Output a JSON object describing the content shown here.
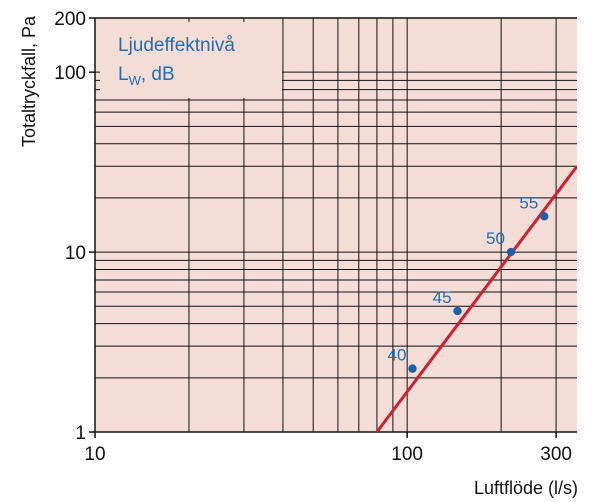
{
  "chart_data": {
    "type": "line",
    "xscale": "log",
    "yscale": "log",
    "xlim": [
      10,
      350
    ],
    "ylim": [
      1,
      200
    ],
    "xlabel": "Luftflöde (l/s)",
    "ylabel": "Totaltryckfall, Pa",
    "x_tick_labels": [
      "10",
      "100",
      "300"
    ],
    "x_ticks": [
      10,
      100,
      300
    ],
    "y_tick_labels": [
      "1",
      "10",
      "100",
      "200"
    ],
    "y_ticks": [
      1,
      10,
      100,
      200
    ],
    "grid": true,
    "legend": {
      "line1": "Ljudeffektnivå",
      "main": "L",
      "sub": "W",
      "suffix": ", dB"
    },
    "line": {
      "x": [
        80,
        350
      ],
      "y": [
        1,
        30
      ]
    },
    "points": [
      {
        "label": "40",
        "x": 104,
        "y": 2.25
      },
      {
        "label": "45",
        "x": 145,
        "y": 4.7
      },
      {
        "label": "50",
        "x": 215,
        "y": 10
      },
      {
        "label": "55",
        "x": 275,
        "y": 15.8
      }
    ],
    "colors": {
      "plot_bg": "#f4ddd6",
      "grid": "#111111",
      "line": "#d0202e",
      "points": "#1f5fa8",
      "labels": "#1f6fb4"
    }
  }
}
